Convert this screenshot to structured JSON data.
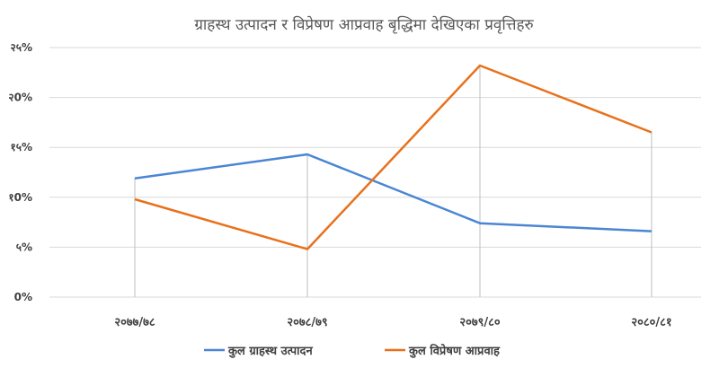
{
  "chart_data": {
    "type": "line",
    "title": "ग्राहस्थ उत्पादन र विप्रेषण आप्रवाह बृद्धिमा देखिएका प्रवृत्तिहरु",
    "categories": [
      "२०७७/७८",
      "२०७८/७९",
      "२०७९/८०",
      "२०८०/८१"
    ],
    "ylim": [
      0,
      25
    ],
    "yticks": [
      0,
      5,
      10,
      15,
      20,
      25
    ],
    "ytick_labels": [
      "0%",
      "५%",
      "१0%",
      "१५%",
      "२0%",
      "२५%"
    ],
    "grid": true,
    "legend_position": "bottom",
    "series": [
      {
        "name": "कुल ग्राहस्थ उत्पादन",
        "color": "#4a86d4",
        "values": [
          11.9,
          14.3,
          7.4,
          6.6
        ]
      },
      {
        "name": "कुल विप्रेषण आप्रवाह",
        "color": "#e8711c",
        "values": [
          9.8,
          4.8,
          23.2,
          16.5
        ]
      }
    ]
  }
}
